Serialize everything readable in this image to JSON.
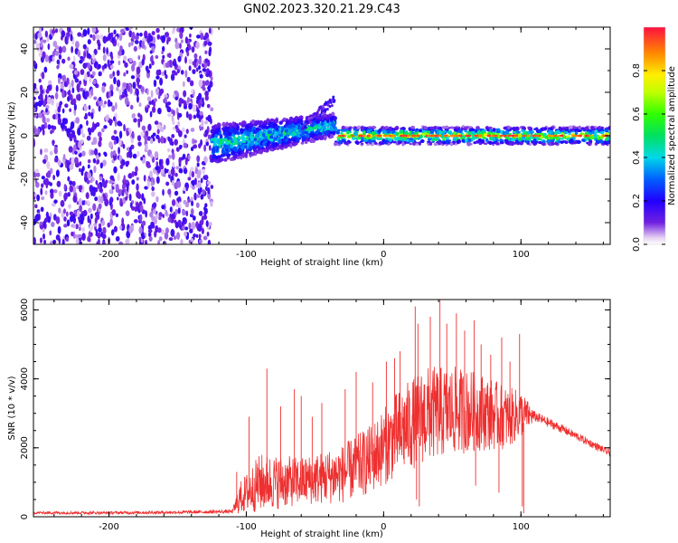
{
  "title": "GN02.2023.320.21.29.C43",
  "chart_data": [
    {
      "type": "heatmap",
      "title": "GN02.2023.320.21.29.C43",
      "xlabel": "Height of straight line (km)",
      "ylabel": "Frequency (Hz)",
      "xlim": [
        -255,
        165
      ],
      "ylim": [
        -50,
        50
      ],
      "x_ticks": [
        -200,
        -100,
        0,
        100
      ],
      "y_ticks": [
        -40,
        -20,
        0,
        20,
        40
      ],
      "colorbar": {
        "label": "Normalized spectral amplitude",
        "range": [
          0,
          1
        ],
        "ticks": [
          0.0,
          0.2,
          0.4,
          0.6,
          0.8
        ]
      },
      "features": [
        {
          "name": "broadband-noise",
          "x_range": [
            -255,
            -125
          ],
          "freq_range": [
            -50,
            50
          ],
          "amplitude": 0.15
        },
        {
          "name": "chirp-onset",
          "x_range": [
            -125,
            -35
          ],
          "freq_start": -4,
          "freq_end": 5,
          "amplitude": 0.35
        },
        {
          "name": "steady-line",
          "x_range": [
            -35,
            165
          ],
          "freq": 0,
          "amplitude": 0.7
        }
      ]
    },
    {
      "type": "line",
      "xlabel": "Height of straight line (km)",
      "ylabel": "SNR (10 * v/v)",
      "xlim": [
        -255,
        165
      ],
      "ylim": [
        0,
        6300
      ],
      "x_ticks": [
        -200,
        -100,
        0,
        100
      ],
      "y_ticks": [
        0,
        2000,
        4000,
        6000
      ],
      "color": "#ee3030",
      "envelope": {
        "x": [
          -255,
          -200,
          -150,
          -110,
          -105,
          -90,
          -60,
          -30,
          -10,
          10,
          30,
          50,
          70,
          90,
          100,
          110,
          130,
          165
        ],
        "base": [
          100,
          100,
          110,
          130,
          350,
          650,
          750,
          900,
          1250,
          1900,
          2400,
          2550,
          2600,
          2500,
          2700,
          2850,
          2500,
          1800
        ],
        "amplitude": [
          80,
          80,
          90,
          110,
          900,
          1700,
          1400,
          1700,
          2000,
          2500,
          2800,
          2600,
          2300,
          1800,
          1400,
          300,
          250,
          200
        ]
      },
      "spikes": [
        {
          "x": -107,
          "y": 1300
        },
        {
          "x": -98,
          "y": 2900
        },
        {
          "x": -85,
          "y": 4300
        },
        {
          "x": -75,
          "y": 3200
        },
        {
          "x": -65,
          "y": 3700
        },
        {
          "x": -60,
          "y": 3500
        },
        {
          "x": -52,
          "y": 2900
        },
        {
          "x": -45,
          "y": 3300
        },
        {
          "x": -28,
          "y": 3700
        },
        {
          "x": -20,
          "y": 4200
        },
        {
          "x": -8,
          "y": 3900
        },
        {
          "x": 2,
          "y": 4500
        },
        {
          "x": 8,
          "y": 4600
        },
        {
          "x": 12,
          "y": 4800
        },
        {
          "x": 23,
          "y": 6100
        },
        {
          "x": 25,
          "y": 5600
        },
        {
          "x": 34,
          "y": 5800
        },
        {
          "x": 41,
          "y": 6300
        },
        {
          "x": 46,
          "y": 5600
        },
        {
          "x": 53,
          "y": 5900
        },
        {
          "x": 59,
          "y": 5400
        },
        {
          "x": 66,
          "y": 5700
        },
        {
          "x": 71,
          "y": 5000
        },
        {
          "x": 78,
          "y": 4700
        },
        {
          "x": 86,
          "y": 5200
        },
        {
          "x": 92,
          "y": 4500
        },
        {
          "x": 99,
          "y": 5300
        }
      ],
      "dips": [
        {
          "x": 24,
          "y": 500
        },
        {
          "x": 26,
          "y": 300
        },
        {
          "x": 67,
          "y": 900
        },
        {
          "x": 84,
          "y": 700
        },
        {
          "x": 101,
          "y": 300
        },
        {
          "x": 102,
          "y": 100
        }
      ]
    }
  ]
}
